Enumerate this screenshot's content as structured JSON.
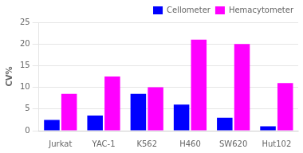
{
  "chart_data": {
    "type": "bar",
    "ylabel": "CV%",
    "categories": [
      "Jurkat",
      "YAC-1",
      "K562",
      "H460",
      "SW620",
      "Hut102"
    ],
    "series": [
      {
        "name": "Cellometer",
        "color": "#0000ff",
        "values": [
          2.5,
          3.5,
          8.5,
          6.0,
          3.0,
          1.0
        ]
      },
      {
        "name": "Hemacytometer",
        "color": "#ff00ff",
        "values": [
          8.5,
          12.5,
          10.0,
          21.0,
          20.0,
          11.0
        ]
      }
    ],
    "ylim": [
      0,
      25
    ],
    "yticks": [
      0,
      5,
      10,
      15,
      20,
      25
    ],
    "grid": true,
    "legend": "upper right"
  }
}
